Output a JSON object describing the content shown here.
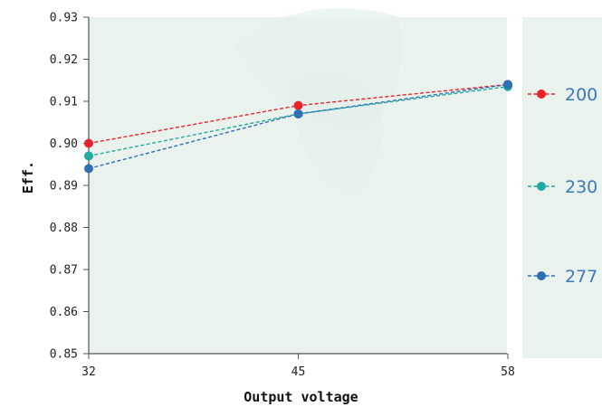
{
  "chart_data": {
    "type": "line",
    "xlabel": "Output voltage",
    "ylabel": "Eff.",
    "x": [
      32,
      45,
      58
    ],
    "x_tick_labels": [
      "32",
      "45",
      "58"
    ],
    "ylim": [
      0.85,
      0.93
    ],
    "y_ticks": [
      0.85,
      0.86,
      0.87,
      0.88,
      0.89,
      0.9,
      0.91,
      0.92,
      0.93
    ],
    "y_tick_labels": [
      "0.85",
      "0.86",
      "0.87",
      "0.88",
      "0.89",
      "0.90",
      "0.91",
      "0.92",
      "0.93"
    ],
    "grid": false,
    "legend_placement": "right",
    "series": [
      {
        "name": "200",
        "values": [
          0.9,
          0.909,
          0.914
        ],
        "color": "#e8242a"
      },
      {
        "name": "230",
        "values": [
          0.897,
          0.907,
          0.9135
        ],
        "color": "#20aaa0"
      },
      {
        "name": "277",
        "values": [
          0.894,
          0.907,
          0.914
        ],
        "color": "#2f6fb4"
      }
    ],
    "plot_background": "#e6f0ea",
    "legend_background": "#e6f0ea",
    "legend_text_color": "#3d7ab8"
  }
}
